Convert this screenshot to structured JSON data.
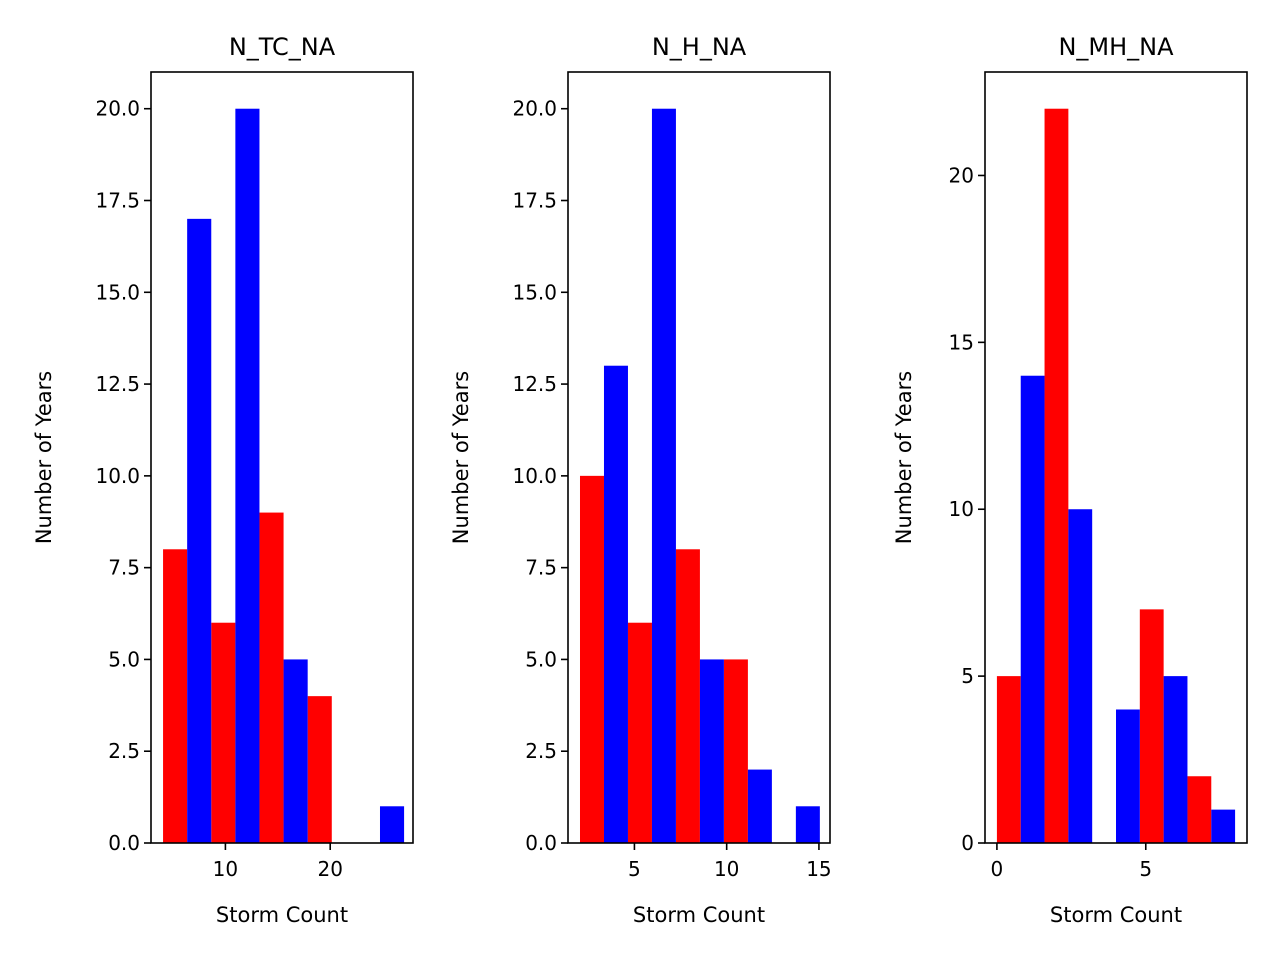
{
  "chart_data": [
    {
      "type": "bar",
      "title": "N_TC_NA",
      "xlabel": "Storm Count",
      "ylabel": "Number of Years",
      "xlim": [
        2.9,
        27.9
      ],
      "ylim": [
        0,
        21
      ],
      "xticks": [
        10,
        20
      ],
      "yticks": [
        0.0,
        2.5,
        5.0,
        7.5,
        10.0,
        12.5,
        15.0,
        17.5,
        20.0
      ],
      "ytick_decimals": 1,
      "series": [
        {
          "color": "#ff0000",
          "bars": [
            {
              "x0": 4.05,
              "x1": 6.35,
              "value": 8
            },
            {
              "x0": 8.65,
              "x1": 10.95,
              "value": 6
            },
            {
              "x0": 13.25,
              "x1": 15.55,
              "value": 9
            },
            {
              "x0": 17.85,
              "x1": 20.15,
              "value": 4
            },
            {
              "x0": 22.45,
              "x1": 24.75,
              "value": 0
            }
          ]
        },
        {
          "color": "#0000ff",
          "bars": [
            {
              "x0": 6.35,
              "x1": 8.65,
              "value": 17
            },
            {
              "x0": 10.95,
              "x1": 13.25,
              "value": 20
            },
            {
              "x0": 15.55,
              "x1": 17.85,
              "value": 5
            },
            {
              "x0": 20.15,
              "x1": 22.45,
              "value": 0
            },
            {
              "x0": 24.75,
              "x1": 27.05,
              "value": 1
            }
          ]
        }
      ]
    },
    {
      "type": "bar",
      "title": "N_H_NA",
      "xlabel": "Storm Count",
      "ylabel": "Number of Years",
      "xlim": [
        1.4,
        15.6
      ],
      "ylim": [
        0,
        21
      ],
      "xticks": [
        5,
        10,
        15
      ],
      "yticks": [
        0.0,
        2.5,
        5.0,
        7.5,
        10.0,
        12.5,
        15.0,
        17.5,
        20.0
      ],
      "ytick_decimals": 1,
      "series": [
        {
          "color": "#ff0000",
          "bars": [
            {
              "x0": 2.05,
              "x1": 3.35,
              "value": 10
            },
            {
              "x0": 4.65,
              "x1": 5.95,
              "value": 6
            },
            {
              "x0": 7.25,
              "x1": 8.55,
              "value": 8
            },
            {
              "x0": 9.85,
              "x1": 11.15,
              "value": 5
            },
            {
              "x0": 12.45,
              "x1": 13.75,
              "value": 0
            }
          ]
        },
        {
          "color": "#0000ff",
          "bars": [
            {
              "x0": 3.35,
              "x1": 4.65,
              "value": 13
            },
            {
              "x0": 5.95,
              "x1": 7.25,
              "value": 20
            },
            {
              "x0": 8.55,
              "x1": 9.85,
              "value": 5
            },
            {
              "x0": 11.15,
              "x1": 12.45,
              "value": 2
            },
            {
              "x0": 13.75,
              "x1": 15.05,
              "value": 1
            }
          ]
        }
      ]
    },
    {
      "type": "bar",
      "title": "N_MH_NA",
      "xlabel": "Storm Count",
      "ylabel": "Number of Years",
      "xlim": [
        -0.4,
        8.4
      ],
      "ylim": [
        0,
        23.1
      ],
      "xticks": [
        0,
        5
      ],
      "yticks": [
        0,
        5,
        10,
        15,
        20
      ],
      "ytick_decimals": 0,
      "series": [
        {
          "color": "#ff0000",
          "bars": [
            {
              "x0": 0.0,
              "x1": 0.8,
              "value": 5
            },
            {
              "x0": 1.6,
              "x1": 2.4,
              "value": 22
            },
            {
              "x0": 3.2,
              "x1": 4.0,
              "value": 0
            },
            {
              "x0": 4.8,
              "x1": 5.6,
              "value": 7
            },
            {
              "x0": 6.4,
              "x1": 7.2,
              "value": 2
            }
          ]
        },
        {
          "color": "#0000ff",
          "bars": [
            {
              "x0": 0.8,
              "x1": 1.6,
              "value": 14
            },
            {
              "x0": 2.4,
              "x1": 3.2,
              "value": 10
            },
            {
              "x0": 4.0,
              "x1": 4.8,
              "value": 4
            },
            {
              "x0": 5.6,
              "x1": 6.4,
              "value": 5
            },
            {
              "x0": 7.2,
              "x1": 8.0,
              "value": 1
            }
          ]
        }
      ]
    }
  ]
}
